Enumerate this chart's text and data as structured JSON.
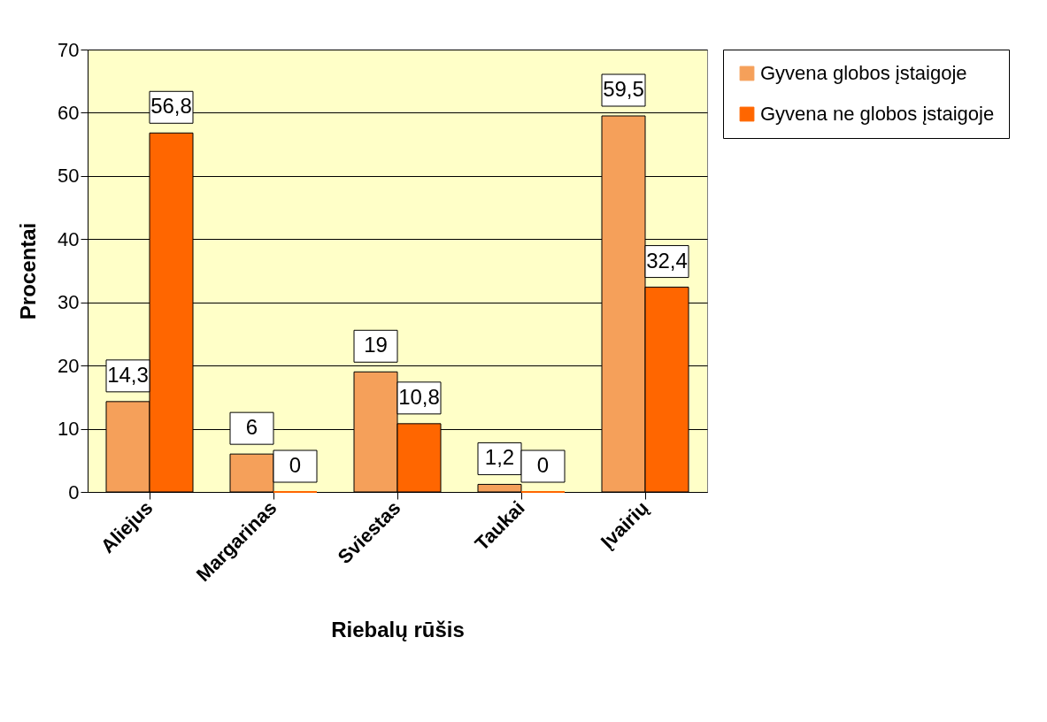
{
  "chart_data": {
    "type": "bar",
    "xlabel": "Riebalų rūšis",
    "ylabel": "Procentai",
    "categories": [
      "Aliejus",
      "Margarinas",
      "Sviestas",
      "Taukai",
      "Įvairių"
    ],
    "series": [
      {
        "name": "Gyvena globos įstaigoje",
        "color": "#f5a05a",
        "values": [
          14.3,
          6,
          19,
          1.2,
          59.5
        ],
        "value_labels": [
          "14,3",
          "6",
          "19",
          "1,2",
          "59,5"
        ]
      },
      {
        "name": "Gyvena ne globos įstaigoje",
        "color": "#ff6600",
        "values": [
          56.8,
          0,
          10.8,
          0,
          32.4
        ],
        "value_labels": [
          "56,8",
          "0",
          "10,8",
          "0",
          "32,4"
        ]
      }
    ],
    "ylim": [
      0,
      70
    ],
    "yticks": [
      0,
      10,
      20,
      30,
      40,
      50,
      60,
      70
    ],
    "grid": "y",
    "legend": "right"
  }
}
